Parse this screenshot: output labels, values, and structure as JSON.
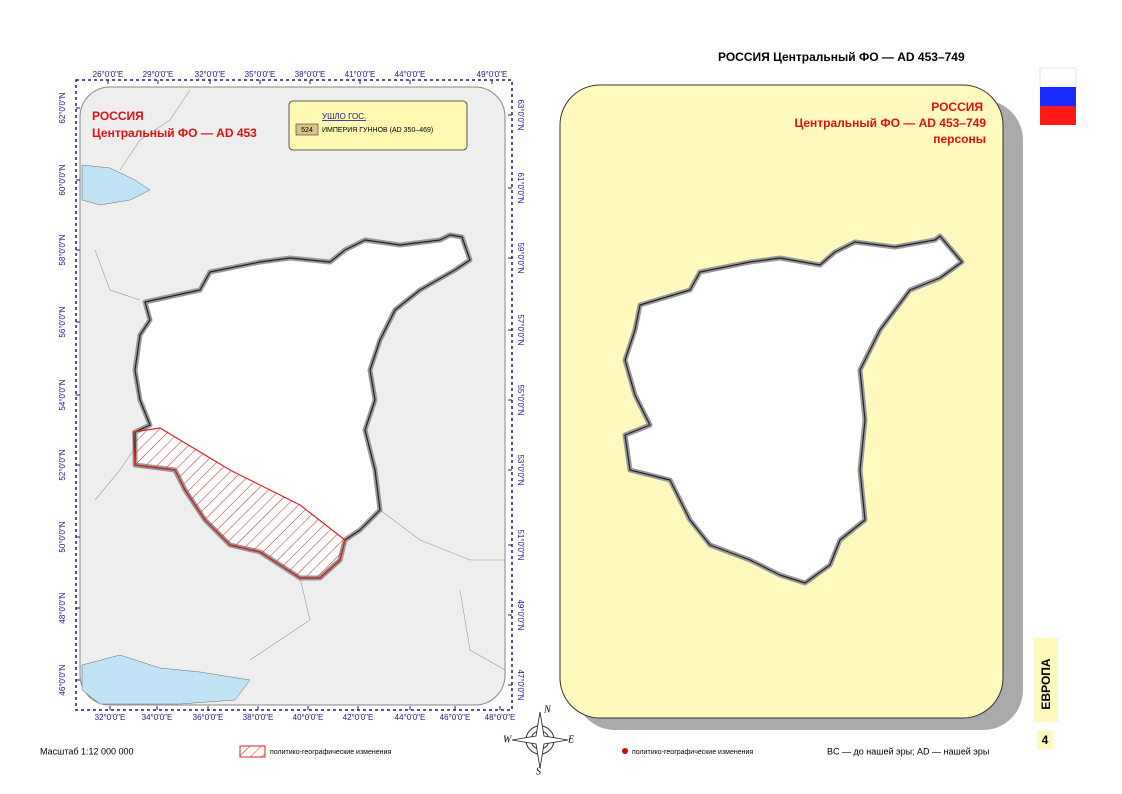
{
  "header": {
    "title": "РОССИЯ  Центральный ФО — AD 453–749"
  },
  "left_map": {
    "title": [
      "РОССИЯ",
      "Центральный ФО — AD 453"
    ],
    "legend": {
      "heading": "УШЛО ГОС.",
      "code": "524",
      "label": "ИМПЕРИЯ ГУННОВ (AD 350–469)"
    },
    "top_ticks": [
      "26°0'0\"E",
      "29°0'0\"E",
      "32°0'0\"E",
      "35°0'0\"E",
      "38°0'0\"E",
      "41°0'0\"E",
      "44°0'0\"E",
      "49°0'0\"E"
    ],
    "bottom_ticks": [
      "32°0'0\"E",
      "34°0'0\"E",
      "36°0'0\"E",
      "38°0'0\"E",
      "40°0'0\"E",
      "42°0'0\"E",
      "44°0'0\"E",
      "46°0'0\"E",
      "48°0'0\"E"
    ],
    "left_ticks": [
      "62°0'0\"N",
      "60°0'0\"N",
      "58°0'0\"N",
      "56°0'0\"N",
      "54°0'0\"N",
      "52°0'0\"N",
      "50°0'0\"N",
      "48°0'0\"N",
      "46°0'0\"N"
    ],
    "right_ticks": [
      "63°0'0\"N",
      "61°0'0\"N",
      "59°0'0\"N",
      "57°0'0\"N",
      "55°0'0\"N",
      "53°0'0\"N",
      "51°0'0\"N",
      "49°0'0\"N",
      "47°0'0\"N"
    ]
  },
  "right_map": {
    "title": [
      "РОССИЯ",
      "Центральный ФО — AD 453–749",
      "персоны"
    ]
  },
  "side": {
    "section": "ЕВРОПА",
    "page": "4"
  },
  "compass": {
    "n": "N",
    "w": "W",
    "e": "E",
    "s": "S"
  },
  "footer": {
    "scale": "Масштаб 1:12 000 000",
    "legend_hatch": "политико-географические изменения",
    "legend_dot": "политико-географические изменения",
    "note": "BC — до нашей эры; AD — нашей эры"
  }
}
